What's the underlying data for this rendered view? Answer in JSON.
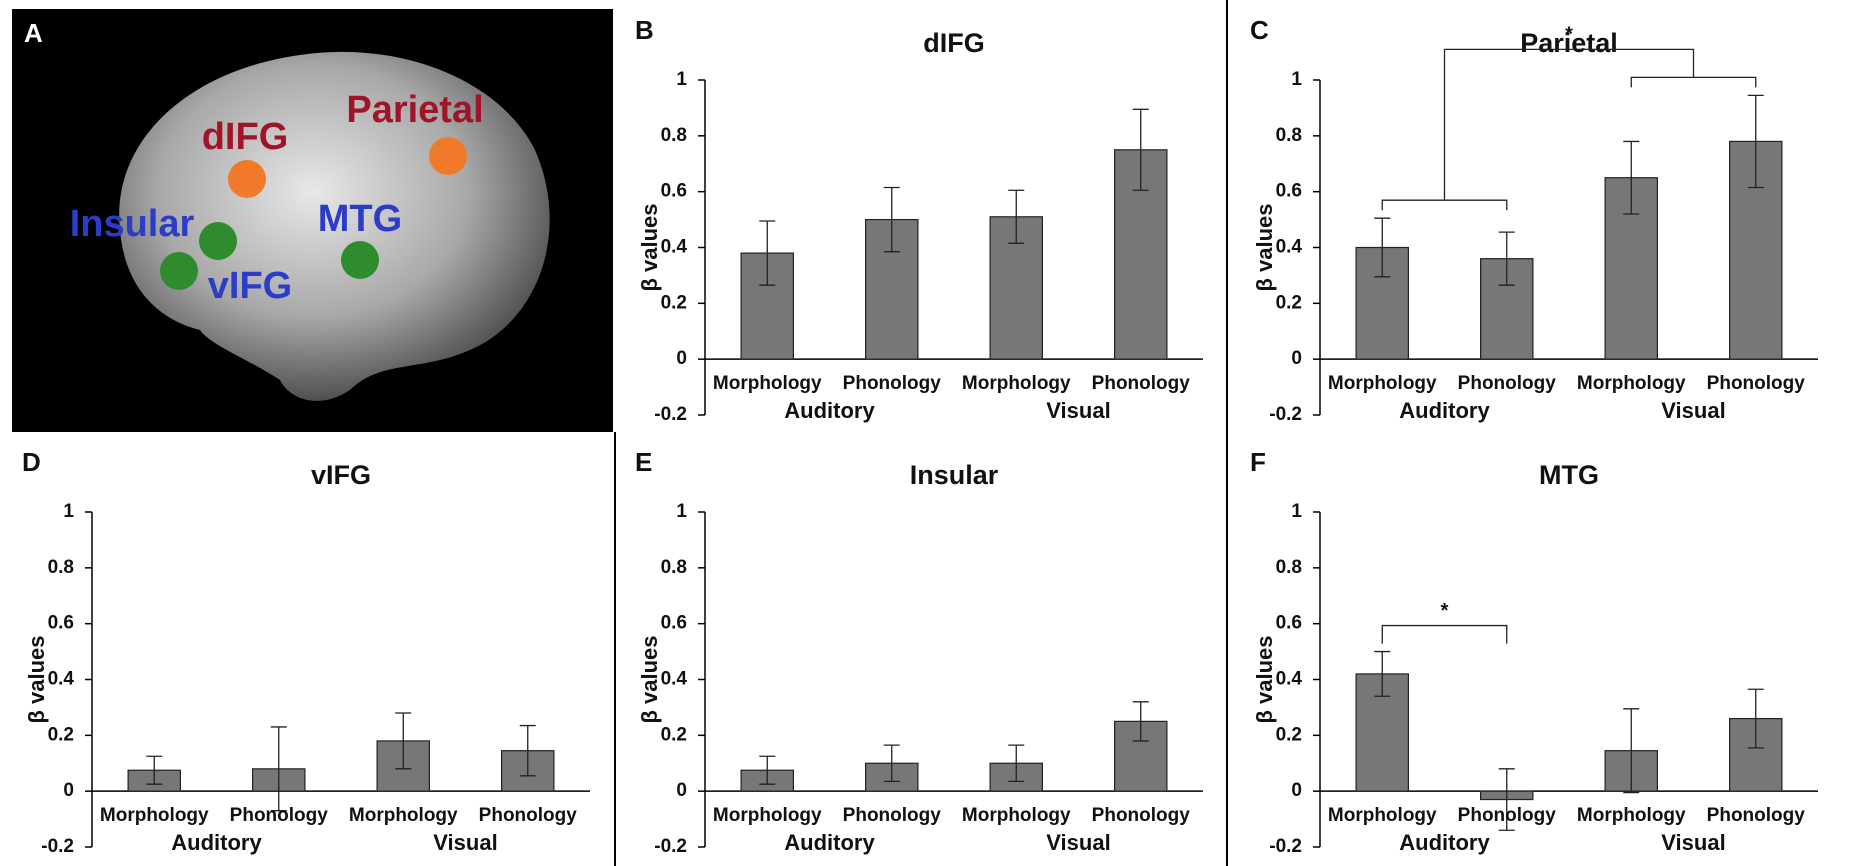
{
  "brain_panel": {
    "panel": "A",
    "regions": [
      {
        "name": "dIFG",
        "color": "#a0142a",
        "dot_color": "#f07a2a"
      },
      {
        "name": "Parietal",
        "color": "#a0142a",
        "dot_color": "#f07a2a"
      },
      {
        "name": "Insular",
        "color": "#2a3cc8",
        "dot_color": "#2e8b2e"
      },
      {
        "name": "vIFG",
        "color": "#2a3cc8",
        "dot_color": "#2e8b2e"
      },
      {
        "name": "MTG",
        "color": "#2a3cc8",
        "dot_color": "#2e8b2e"
      }
    ]
  },
  "chart_data": [
    {
      "type": "bar",
      "panel": "B",
      "title": "dIFG",
      "y_label": "β values",
      "categories": [
        "Morphology",
        "Phonology",
        "Morphology",
        "Phonology"
      ],
      "group_labels": [
        "Auditory",
        "Visual"
      ],
      "values": [
        0.38,
        0.5,
        0.51,
        0.75
      ],
      "errors": [
        0.115,
        0.115,
        0.095,
        0.145
      ],
      "color": "#777777",
      "ylim": [
        -0.2,
        1
      ],
      "yticks": [
        -0.2,
        0,
        0.2,
        0.4,
        0.6,
        0.8,
        1
      ],
      "annotations": []
    },
    {
      "type": "bar",
      "panel": "C",
      "title": "Parietal",
      "y_label": "β values",
      "categories": [
        "Morphology",
        "Phonology",
        "Morphology",
        "Phonology"
      ],
      "group_labels": [
        "Auditory",
        "Visual"
      ],
      "values": [
        0.4,
        0.36,
        0.65,
        0.78
      ],
      "errors": [
        0.105,
        0.095,
        0.13,
        0.165
      ],
      "color": "#777777",
      "ylim": [
        -0.2,
        1
      ],
      "yticks": [
        -0.2,
        0,
        0.2,
        0.4,
        0.6,
        0.8,
        1
      ],
      "annotations": [
        {
          "text": "*",
          "bracket": [
            [
              0,
              1
            ],
            [
              2,
              3
            ]
          ]
        }
      ]
    },
    {
      "type": "bar",
      "panel": "D",
      "title": "vIFG",
      "y_label": "β values",
      "categories": [
        "Morphology",
        "Phonology",
        "Morphology",
        "Phonology"
      ],
      "group_labels": [
        "Auditory",
        "Visual"
      ],
      "values": [
        0.075,
        0.08,
        0.18,
        0.145
      ],
      "errors": [
        0.05,
        0.15,
        0.1,
        0.09
      ],
      "color": "#777777",
      "ylim": [
        -0.2,
        1
      ],
      "yticks": [
        -0.2,
        0,
        0.2,
        0.4,
        0.6,
        0.8,
        1
      ],
      "annotations": []
    },
    {
      "type": "bar",
      "panel": "E",
      "title": "Insular",
      "y_label": "β values",
      "categories": [
        "Morphology",
        "Phonology",
        "Morphology",
        "Phonology"
      ],
      "group_labels": [
        "Auditory",
        "Visual"
      ],
      "values": [
        0.075,
        0.1,
        0.1,
        0.25
      ],
      "errors": [
        0.05,
        0.065,
        0.065,
        0.07
      ],
      "color": "#777777",
      "ylim": [
        -0.2,
        1
      ],
      "yticks": [
        -0.2,
        0,
        0.2,
        0.4,
        0.6,
        0.8,
        1
      ],
      "annotations": []
    },
    {
      "type": "bar",
      "panel": "F",
      "title": "MTG",
      "y_label": "β values",
      "categories": [
        "Morphology",
        "Phonology",
        "Morphology",
        "Phonology"
      ],
      "group_labels": [
        "Auditory",
        "Visual"
      ],
      "values": [
        0.42,
        -0.03,
        0.145,
        0.26
      ],
      "errors": [
        0.08,
        0.11,
        0.15,
        0.105
      ],
      "color": "#777777",
      "ylim": [
        -0.2,
        1
      ],
      "yticks": [
        -0.2,
        0,
        0.2,
        0.4,
        0.6,
        0.8,
        1
      ],
      "annotations": [
        {
          "text": "*",
          "bracket": [
            [
              0
            ],
            [
              1
            ]
          ]
        }
      ]
    }
  ]
}
